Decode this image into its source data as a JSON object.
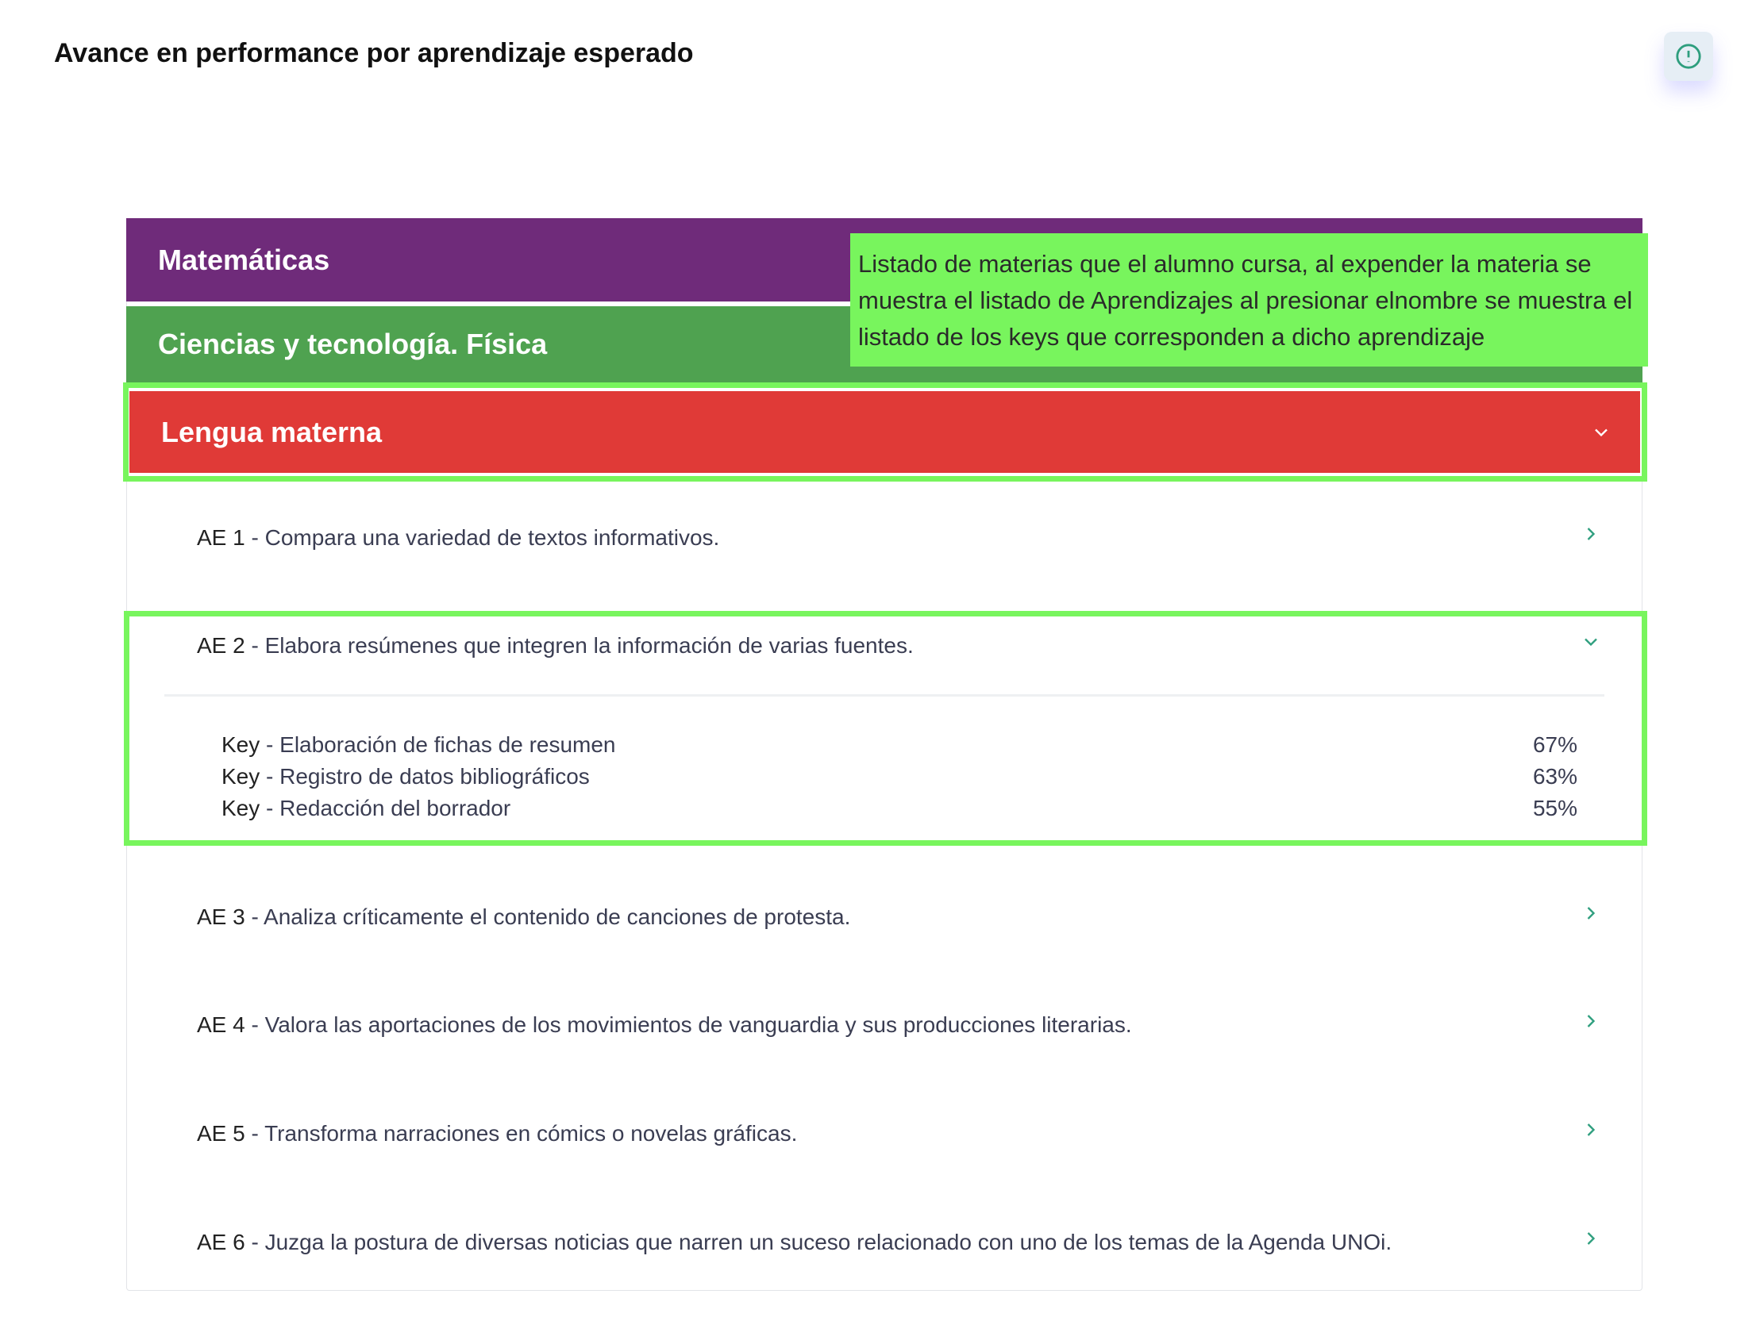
{
  "header": {
    "title": "Avance en performance por aprendizaje esperado",
    "info_icon": "alert-circle-icon"
  },
  "colors": {
    "matematicas": "#6f2b7a",
    "ciencias": "#4fa250",
    "lengua": "#e03a37",
    "highlight": "#78f55d",
    "chevron": "#2e9e7e"
  },
  "subjects": [
    {
      "name": "Matemáticas"
    },
    {
      "name": "Ciencias y tecnología. Física"
    },
    {
      "name": "Lengua materna",
      "expanded": true
    }
  ],
  "learnings": [
    {
      "code": "AE 1",
      "sep": " - ",
      "text": "Compara una variedad de textos informativos."
    },
    {
      "code": "AE 2",
      "sep": " - ",
      "text": "Elabora resúmenes que integren la información de varias fuentes.",
      "expanded": true,
      "keys": [
        {
          "label": "Key",
          "sep": " - ",
          "text": "Elaboración de fichas de resumen",
          "pct": "67%"
        },
        {
          "label": "Key",
          "sep": " - ",
          "text": "Registro de datos bibliográficos",
          "pct": "63%"
        },
        {
          "label": "Key",
          "sep": " - ",
          "text": "Redacción del borrador",
          "pct": "55%"
        }
      ]
    },
    {
      "code": "AE 3",
      "sep": " - ",
      "text": "Analiza críticamente el contenido de canciones de protesta."
    },
    {
      "code": "AE 4",
      "sep": " - ",
      "text": "Valora las aportaciones de los movimientos de vanguardia y sus producciones literarias."
    },
    {
      "code": "AE 5",
      "sep": " - ",
      "text": "Transforma narraciones en cómics o novelas gráficas."
    },
    {
      "code": "AE 6",
      "sep": " - ",
      "text": "Juzga la postura de diversas noticias que narren un suceso relacionado con uno de los temas de la Agenda UNOi."
    }
  ],
  "annotation": {
    "text": "Listado de materias que el alumno cursa, al expender la materia se muestra el listado de Aprendizajes al presionar elnombre se muestra el listado de los keys que corresponden a dicho aprendizaje"
  }
}
